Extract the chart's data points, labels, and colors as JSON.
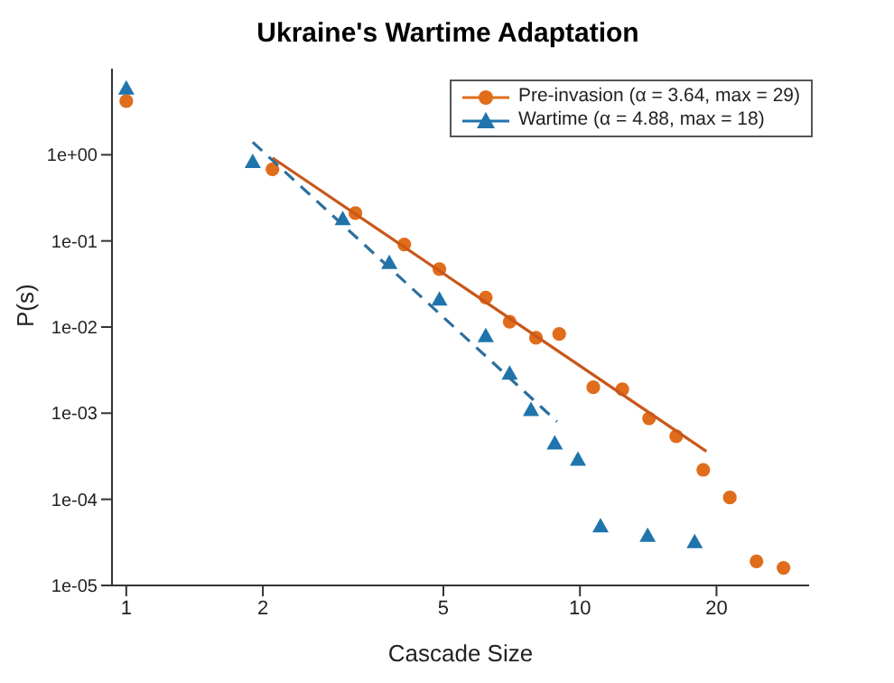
{
  "chart_data": {
    "type": "scatter",
    "title": "Ukraine's Wartime Adaptation",
    "xlabel": "Cascade Size",
    "ylabel": "P(s)",
    "log": "xy",
    "xlim": [
      0.93,
      32
    ],
    "ylim": [
      1e-05,
      10
    ],
    "xticks": [
      1,
      2,
      5,
      10,
      20
    ],
    "yticks": [
      {
        "value": 1e-05,
        "label": "1e-05"
      },
      {
        "value": 0.0001,
        "label": "1e-04"
      },
      {
        "value": 0.001,
        "label": "1e-03"
      },
      {
        "value": 0.01,
        "label": "1e-02"
      },
      {
        "value": 0.1,
        "label": "1e-01"
      },
      {
        "value": 1,
        "label": "1e+00"
      }
    ],
    "grid": false,
    "legend": "top right",
    "series": [
      {
        "name": "Pre-invasion (α = 3.64, max = 29)",
        "color": "#e06d1c",
        "marker": "circle",
        "x": [
          1,
          2.1,
          3.2,
          4.1,
          4.9,
          6.2,
          7.0,
          8.0,
          9.0,
          10.7,
          12.4,
          14.2,
          16.3,
          18.7,
          21.4,
          24.5,
          28.1
        ],
        "values": [
          4.2,
          0.68,
          0.21,
          0.091,
          0.047,
          0.022,
          0.0115,
          0.0075,
          0.0083,
          0.002,
          0.0019,
          0.00087,
          0.00054,
          0.00022,
          0.000105,
          1.9e-05,
          1.6e-05
        ]
      },
      {
        "name": "Wartime (α = 4.88, max = 18)",
        "color": "#1f74ac",
        "marker": "triangle",
        "x": [
          1,
          1.9,
          3.0,
          3.8,
          4.9,
          6.2,
          7.0,
          7.8,
          8.8,
          9.9,
          11.1,
          14.1,
          17.9
        ],
        "values": [
          5.9,
          0.83,
          0.18,
          0.056,
          0.021,
          0.0079,
          0.0029,
          0.0011,
          0.00045,
          0.00029,
          4.9e-05,
          3.8e-05,
          3.2e-05
        ]
      },
      {
        "type": "line",
        "color": "#c8581a",
        "marker": "none",
        "line_style": "solid",
        "x": [
          2.1,
          19
        ],
        "values": [
          0.92,
          0.00036
        ]
      },
      {
        "type": "line",
        "color": "#2b6f9e",
        "marker": "none",
        "line_style": "dashed",
        "x": [
          1.9,
          8.9
        ],
        "values": [
          1.4,
          0.0008
        ]
      }
    ]
  }
}
